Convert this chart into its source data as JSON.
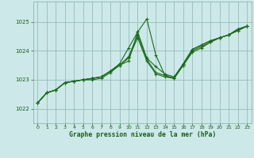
{
  "bg_color": "#cce8e8",
  "grid_color": "#99bbbb",
  "line_color": "#1a6b1a",
  "marker_color": "#1a6b1a",
  "xlabel": "Graphe pression niveau de la mer (hPa)",
  "xlim": [
    -0.5,
    23.5
  ],
  "ylim": [
    1021.5,
    1025.7
  ],
  "yticks": [
    1022,
    1023,
    1024,
    1025
  ],
  "xticks": [
    0,
    1,
    2,
    3,
    4,
    5,
    6,
    7,
    8,
    9,
    10,
    11,
    12,
    13,
    14,
    15,
    16,
    17,
    18,
    19,
    20,
    21,
    22,
    23
  ],
  "lines": [
    [
      1022.2,
      1022.55,
      1022.65,
      1022.9,
      1022.95,
      1023.0,
      1023.0,
      1023.05,
      1023.25,
      1023.5,
      1023.65,
      1024.65,
      1025.1,
      1023.85,
      1023.15,
      1023.05,
      1023.55,
      1024.05,
      1024.2,
      1024.35,
      1024.45,
      1024.55,
      1024.75,
      1024.85
    ],
    [
      1022.2,
      1022.55,
      1022.65,
      1022.9,
      1022.95,
      1023.0,
      1023.05,
      1023.1,
      1023.3,
      1023.55,
      1024.1,
      1024.65,
      1023.75,
      1023.45,
      1023.2,
      1023.1,
      1023.55,
      1024.05,
      1024.2,
      1024.35,
      1024.45,
      1024.55,
      1024.75,
      1024.85
    ],
    [
      1022.2,
      1022.55,
      1022.65,
      1022.9,
      1022.95,
      1023.0,
      1023.05,
      1023.1,
      1023.3,
      1023.5,
      1023.8,
      1024.55,
      1023.7,
      1023.25,
      1023.15,
      1023.05,
      1023.5,
      1024.0,
      1024.15,
      1024.3,
      1024.45,
      1024.55,
      1024.7,
      1024.85
    ],
    [
      1022.2,
      1022.55,
      1022.65,
      1022.9,
      1022.95,
      1023.0,
      1023.05,
      1023.1,
      1023.3,
      1023.5,
      1023.75,
      1024.45,
      1023.65,
      1023.2,
      1023.1,
      1023.05,
      1023.5,
      1023.95,
      1024.1,
      1024.3,
      1024.45,
      1024.55,
      1024.7,
      1024.85
    ]
  ]
}
